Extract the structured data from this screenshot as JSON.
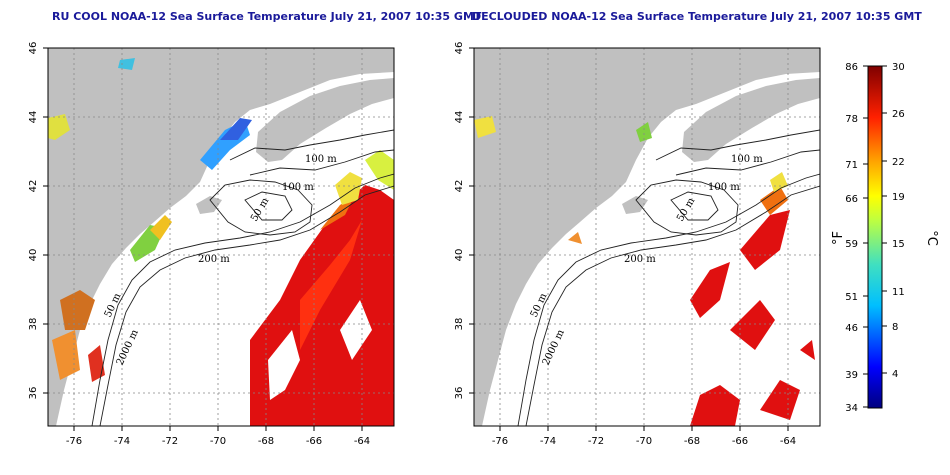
{
  "panels": [
    {
      "title": "RU COOL NOAA-12 Sea Surface Temperature July 21, 2007 10:35 GMT",
      "contour_labels": [
        "100 m",
        "100 m",
        "50 m",
        "200 m",
        "50 m",
        "2000 m"
      ]
    },
    {
      "title": "DECLOUDED NOAA-12 Sea Surface Temperature July 21, 2007 10:35 GMT",
      "contour_labels": [
        "100 m",
        "100 m",
        "50 m",
        "200 m",
        "50 m",
        "2000 m"
      ]
    }
  ],
  "axes": {
    "x_ticks": [
      "-76",
      "-74",
      "-72",
      "-70",
      "-68",
      "-66",
      "-64"
    ],
    "y_ticks": [
      "46",
      "44",
      "42",
      "40",
      "38",
      "36"
    ]
  },
  "colorbar": {
    "fahrenheit_unit": "°F",
    "celsius_unit": "°C",
    "fahrenheit_ticks": [
      "86",
      "78",
      "71",
      "66",
      "59",
      "51",
      "46",
      "39",
      "34"
    ],
    "celsius_ticks": [
      "30",
      "26",
      "22",
      "19",
      "15",
      "11",
      "8",
      "4"
    ]
  },
  "colors": {
    "land": "#c0c0c0",
    "water": "#ffffff",
    "title": "#1a1a9a",
    "grid": "#888888"
  }
}
